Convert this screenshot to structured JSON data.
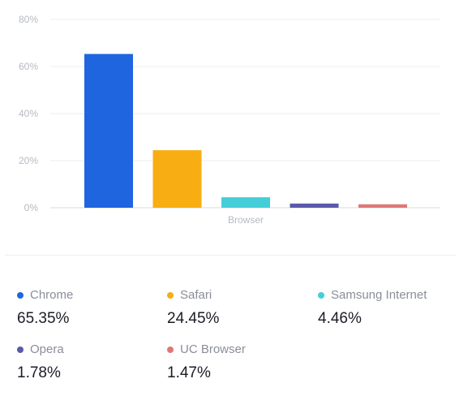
{
  "chart_data": {
    "type": "bar",
    "xlabel": "Browser",
    "ylabel": "",
    "categories": [
      "Chrome",
      "Safari",
      "Samsung Internet",
      "Opera",
      "UC Browser"
    ],
    "values": [
      65.35,
      24.45,
      4.46,
      1.78,
      1.47
    ],
    "colors": [
      "#1f65e0",
      "#f8ad12",
      "#45ced8",
      "#5a5aab",
      "#e07777"
    ],
    "ylim": [
      0,
      80
    ],
    "yticks": [
      "0%",
      "20%",
      "40%",
      "60%",
      "80%"
    ],
    "ytick_values": [
      0,
      20,
      40,
      60,
      80
    ],
    "grid": true
  },
  "legend": [
    {
      "name": "Chrome",
      "value": "65.35%",
      "color": "#1f65e0"
    },
    {
      "name": "Safari",
      "value": "24.45%",
      "color": "#f8ad12"
    },
    {
      "name": "Samsung Internet",
      "value": "4.46%",
      "color": "#45ced8"
    },
    {
      "name": "Opera",
      "value": "1.78%",
      "color": "#5a5aab"
    },
    {
      "name": "UC Browser",
      "value": "1.47%",
      "color": "#e07777"
    }
  ]
}
